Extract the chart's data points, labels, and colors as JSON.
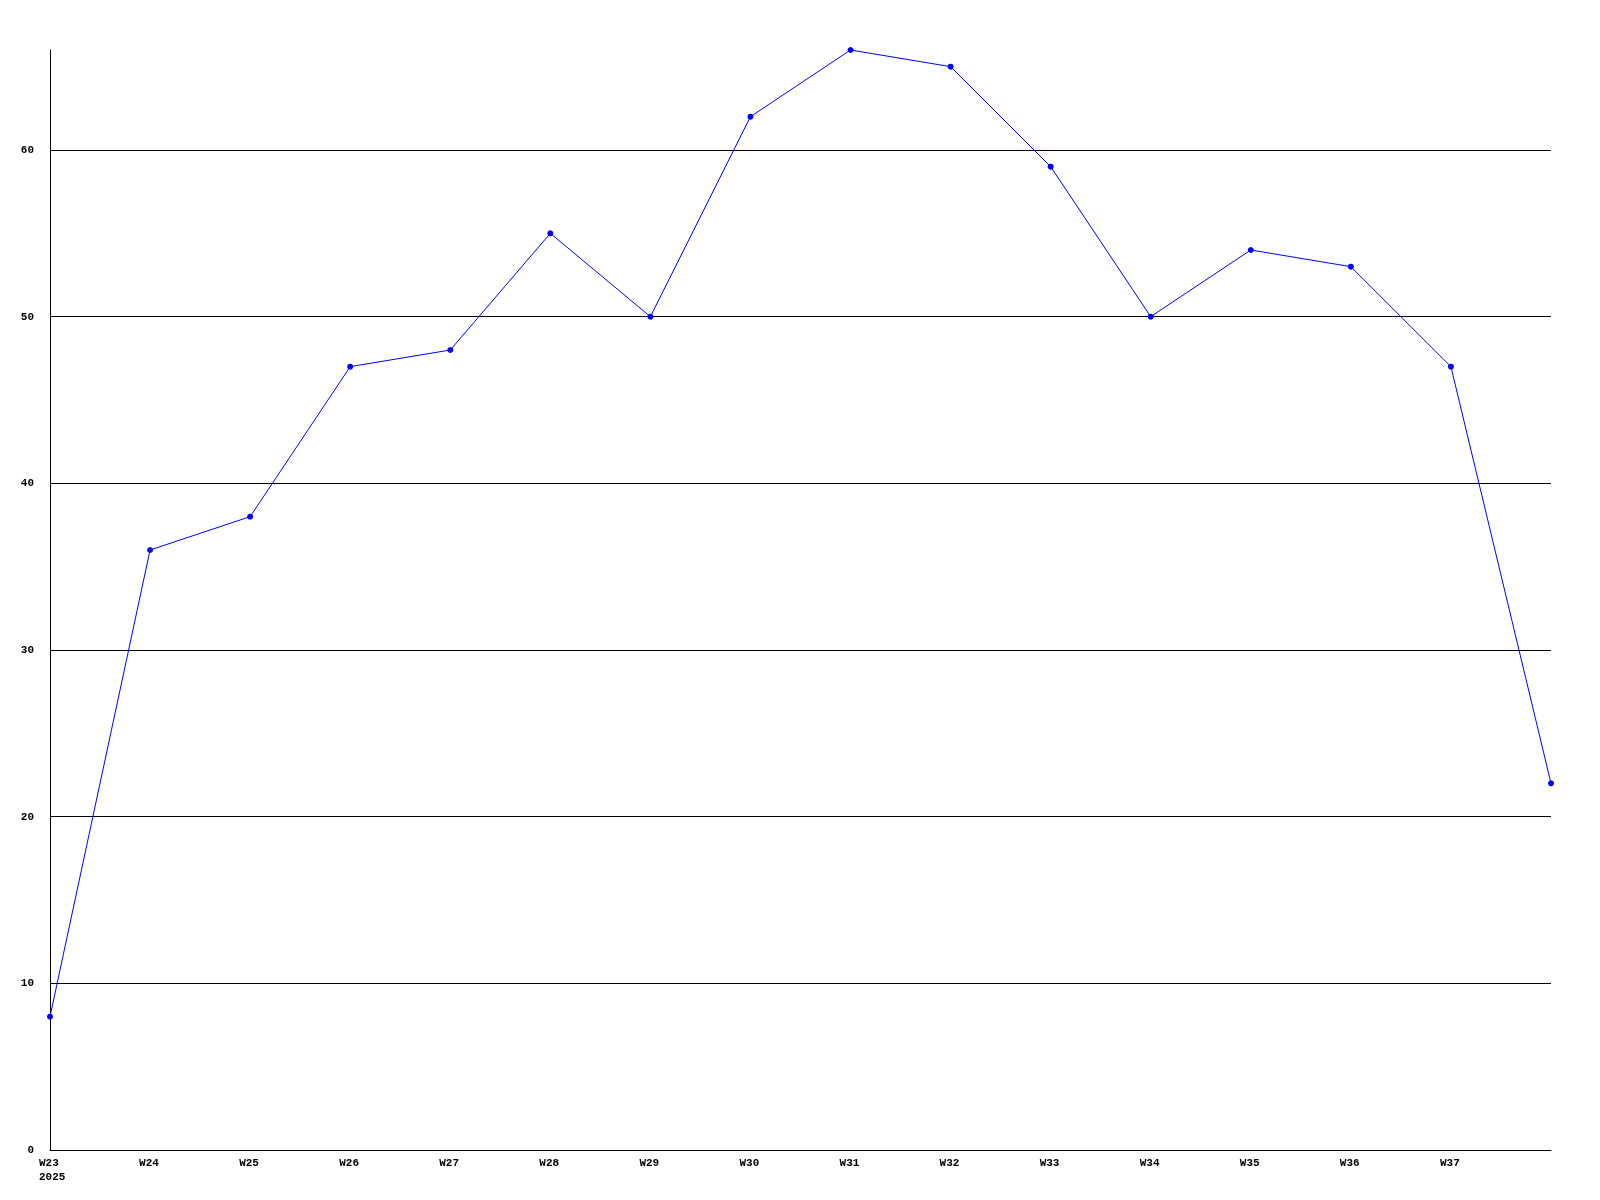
{
  "chart_data": {
    "type": "line",
    "categories": [
      "W23\n2025",
      "W24",
      "W25",
      "W26",
      "W27",
      "W28",
      "W29",
      "W30",
      "W31",
      "W32",
      "W33",
      "W34",
      "W35",
      "W36",
      "W37",
      null
    ],
    "series": [
      {
        "color": "#0000ff",
        "values": [
          8,
          36,
          38,
          47,
          48,
          55,
          50,
          62,
          66,
          65,
          59,
          50,
          54,
          53,
          47,
          22
        ]
      }
    ],
    "ylim": [
      0,
      66
    ],
    "yticks": [
      0,
      10,
      20,
      30,
      40,
      50,
      60
    ],
    "grid": "y",
    "marker": "circle",
    "line_style": "solid"
  }
}
